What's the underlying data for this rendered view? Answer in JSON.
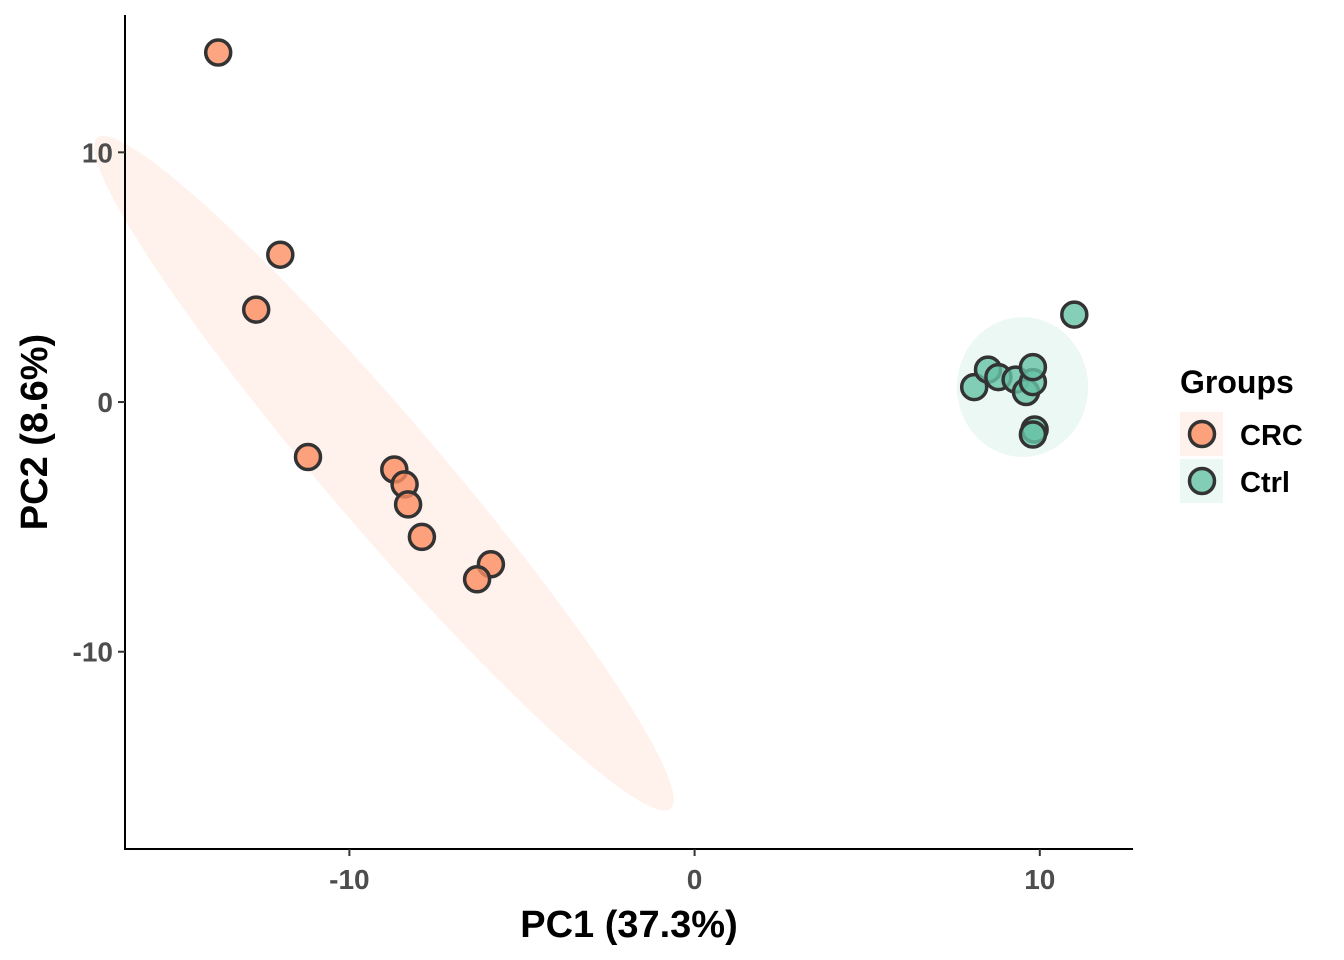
{
  "chart_data": {
    "type": "scatter",
    "title": "",
    "xlabel": "PC1 (37.3%)",
    "ylabel": "PC2 (8.6%)",
    "xlim": [
      -16.5,
      12.7
    ],
    "ylim": [
      -17.9,
      15.5
    ],
    "x_ticks": [
      {
        "value": -10,
        "label": "-10"
      },
      {
        "value": 0,
        "label": "0"
      },
      {
        "value": 10,
        "label": "10"
      }
    ],
    "y_ticks": [
      {
        "value": -10,
        "label": "-10"
      },
      {
        "value": 0,
        "label": "0"
      },
      {
        "value": 10,
        "label": "10"
      }
    ],
    "grid": false,
    "legend": {
      "title": "Groups",
      "position": "right"
    },
    "series": [
      {
        "name": "CRC",
        "color": "#FC8D62",
        "ellipse_color": "#FC8D62",
        "points": [
          {
            "x": -13.8,
            "y": 14.0
          },
          {
            "x": -12.0,
            "y": 5.9
          },
          {
            "x": -12.7,
            "y": 3.7
          },
          {
            "x": -11.2,
            "y": -2.2
          },
          {
            "x": -8.7,
            "y": -2.7
          },
          {
            "x": -8.4,
            "y": -3.3
          },
          {
            "x": -8.3,
            "y": -4.1
          },
          {
            "x": -7.9,
            "y": -5.4
          },
          {
            "x": -5.9,
            "y": -6.5
          },
          {
            "x": -6.3,
            "y": -7.1
          }
        ],
        "ellipse": {
          "cx": -9.0,
          "cy": -2.85,
          "rx": 15.8,
          "ry": 1.8,
          "angle_deg": -58.5
        }
      },
      {
        "name": "Ctrl",
        "color": "#66C2A5",
        "ellipse_color": "#66C2A5",
        "points": [
          {
            "x": 11.0,
            "y": 3.5
          },
          {
            "x": 8.1,
            "y": 0.6
          },
          {
            "x": 8.5,
            "y": 1.3
          },
          {
            "x": 8.8,
            "y": 1.0
          },
          {
            "x": 9.3,
            "y": 0.9
          },
          {
            "x": 9.6,
            "y": 0.4
          },
          {
            "x": 9.8,
            "y": 0.8
          },
          {
            "x": 9.8,
            "y": 1.4
          },
          {
            "x": 9.85,
            "y": -1.1
          },
          {
            "x": 9.8,
            "y": -1.3
          }
        ],
        "ellipse": {
          "cx": 9.5,
          "cy": 0.6,
          "rx": 1.9,
          "ry": 2.8,
          "angle_deg": 0
        }
      }
    ]
  }
}
